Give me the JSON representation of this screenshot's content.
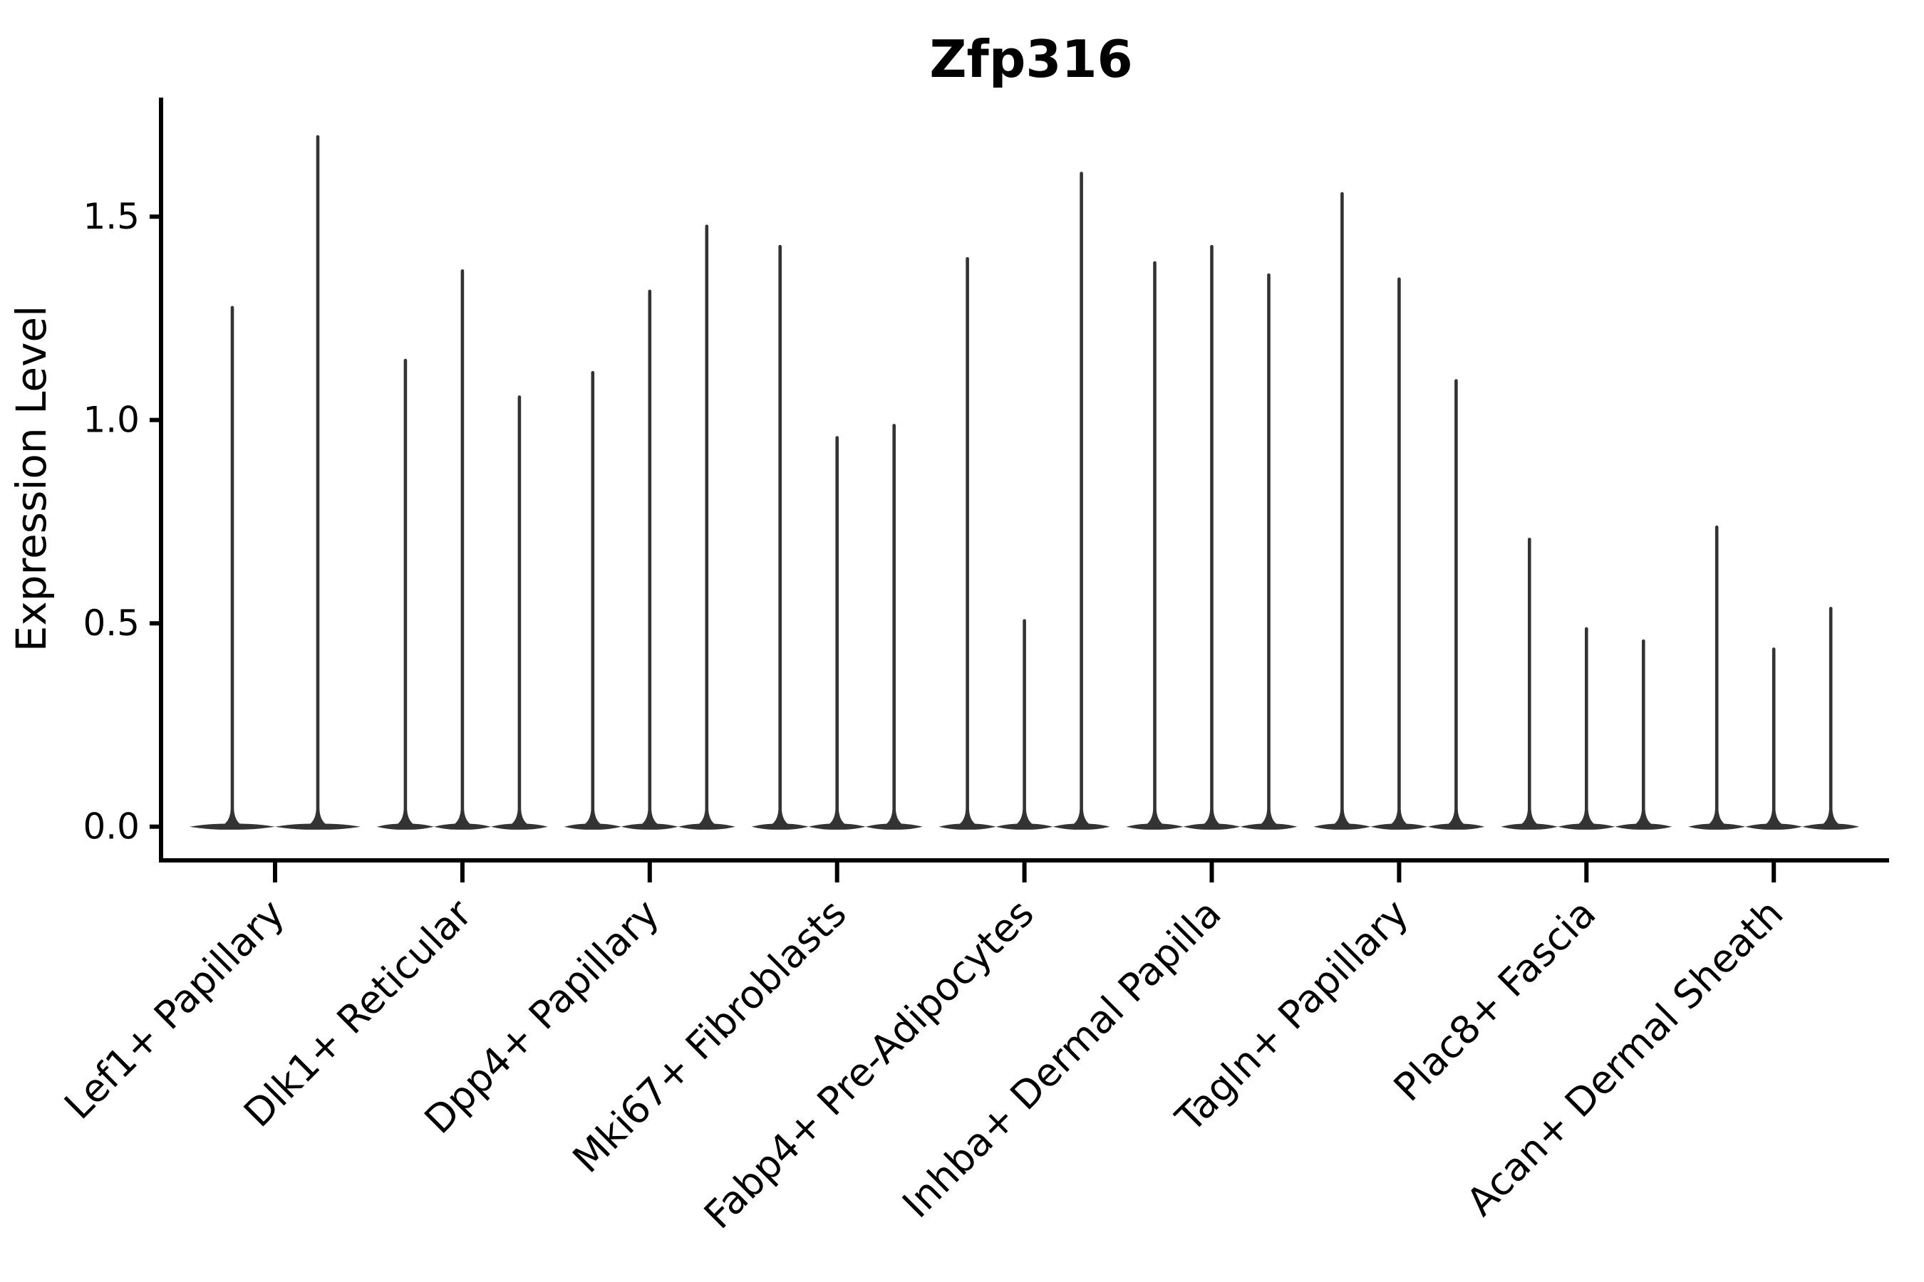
{
  "chart_data": {
    "type": "violin",
    "title": "Zfp316",
    "ylabel": "Expression Level",
    "xlabel": "",
    "grid": false,
    "legend_position": "none",
    "yticks": [
      0.0,
      0.5,
      1.0,
      1.5
    ],
    "ytick_labels": [
      "0.0",
      "0.5",
      "1.0",
      "1.5"
    ],
    "ylim": [
      -0.08,
      1.79
    ],
    "violin_color": "#333333",
    "axis_color": "#000000",
    "baseline_value": 0.0,
    "groups": [
      {
        "label": "Lef1+ Papillary",
        "violin_maxima": [
          1.28,
          1.7
        ]
      },
      {
        "label": "Dlk1+ Reticular",
        "violin_maxima": [
          1.15,
          1.37,
          1.06
        ]
      },
      {
        "label": "Dpp4+ Papillary",
        "violin_maxima": [
          1.12,
          1.32,
          1.48
        ]
      },
      {
        "label": "Mki67+ Fibroblasts",
        "violin_maxima": [
          1.43,
          0.96,
          0.99
        ]
      },
      {
        "label": "Fabp4+ Pre-Adipocytes",
        "violin_maxima": [
          1.4,
          0.51,
          1.61
        ]
      },
      {
        "label": "Inhba+ Dermal Papilla",
        "violin_maxima": [
          1.39,
          1.43,
          1.36
        ]
      },
      {
        "label": "Tagln+ Papillary",
        "violin_maxima": [
          1.56,
          1.35,
          1.1
        ]
      },
      {
        "label": "Plac8+ Fascia",
        "violin_maxima": [
          0.71,
          0.49,
          0.46
        ]
      },
      {
        "label": "Acan+ Dermal Sheath",
        "violin_maxima": [
          0.74,
          0.44,
          0.54
        ]
      }
    ],
    "description": "Violin plot of Zfp316 expression; each violin is a spike from 0 to its maximum with the density mass concentrated at 0."
  }
}
